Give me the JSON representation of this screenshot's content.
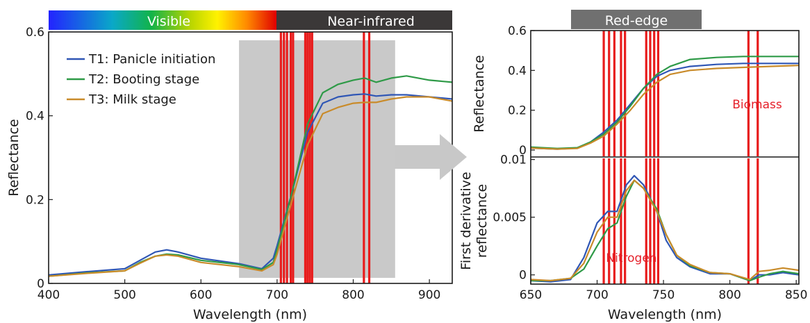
{
  "chart_data": [
    {
      "panel": "left",
      "type": "line",
      "band_labels": {
        "visible": "Visible",
        "nir": "Near-infrared"
      },
      "xlabel": "Wavelength (nm)",
      "ylabel": "Reflectance",
      "xlim": [
        400,
        930
      ],
      "ylim": [
        0,
        0.6
      ],
      "xticks": [
        400,
        500,
        600,
        700,
        800,
        900
      ],
      "yticks": [
        0,
        0.2,
        0.4,
        0.6
      ],
      "ytick_labels": [
        "0",
        "0.2",
        "0.4",
        "0.6"
      ],
      "highlight_region": [
        650,
        855
      ],
      "marker_bands": [
        705,
        709,
        713,
        718,
        721,
        737,
        740,
        743,
        746,
        814,
        821
      ],
      "legend_position": "top-left",
      "series": [
        {
          "name": "T1: Panicle initiation",
          "color": "#2f56b5",
          "x": [
            400,
            450,
            500,
            520,
            540,
            555,
            570,
            600,
            650,
            680,
            695,
            700,
            720,
            740,
            760,
            780,
            800,
            815,
            830,
            850,
            870,
            900,
            930
          ],
          "y": [
            0.02,
            0.028,
            0.035,
            0.055,
            0.075,
            0.08,
            0.075,
            0.06,
            0.047,
            0.035,
            0.06,
            0.09,
            0.22,
            0.36,
            0.43,
            0.445,
            0.45,
            0.452,
            0.447,
            0.45,
            0.45,
            0.445,
            0.44
          ]
        },
        {
          "name": "T2: Booting stage",
          "color": "#2e9a47",
          "x": [
            400,
            450,
            500,
            520,
            540,
            555,
            570,
            600,
            650,
            680,
            695,
            700,
            720,
            740,
            760,
            780,
            800,
            815,
            830,
            850,
            870,
            900,
            930
          ],
          "y": [
            0.017,
            0.025,
            0.03,
            0.05,
            0.065,
            0.07,
            0.068,
            0.055,
            0.045,
            0.033,
            0.05,
            0.08,
            0.22,
            0.38,
            0.455,
            0.475,
            0.485,
            0.49,
            0.48,
            0.49,
            0.495,
            0.485,
            0.48
          ]
        },
        {
          "name": "T3: Milk stage",
          "color": "#c98b2a",
          "x": [
            400,
            450,
            500,
            520,
            540,
            555,
            570,
            600,
            650,
            680,
            695,
            700,
            720,
            740,
            760,
            780,
            800,
            815,
            830,
            850,
            870,
            900,
            930
          ],
          "y": [
            0.017,
            0.024,
            0.03,
            0.048,
            0.065,
            0.068,
            0.065,
            0.05,
            0.04,
            0.03,
            0.045,
            0.07,
            0.2,
            0.33,
            0.405,
            0.42,
            0.43,
            0.432,
            0.432,
            0.44,
            0.445,
            0.445,
            0.435
          ]
        }
      ]
    },
    {
      "panel": "right-top",
      "type": "line",
      "band_label": "Red-edge",
      "ylabel": "Reflectance",
      "xlim": [
        650,
        852
      ],
      "ylim": [
        0,
        0.6
      ],
      "yticks": [
        0,
        0.2,
        0.4,
        0.6
      ],
      "ytick_labels": [
        "0",
        "0.2",
        "0.4",
        "0.6"
      ],
      "annotation": "Biomass",
      "marker_bands": [
        705,
        709,
        713,
        718,
        721,
        737,
        740,
        743,
        746,
        814,
        821
      ],
      "series": [
        {
          "name": "T1: Panicle initiation",
          "color": "#2f56b5",
          "x": [
            650,
            670,
            685,
            695,
            705,
            715,
            725,
            735,
            745,
            755,
            770,
            790,
            810,
            830,
            852
          ],
          "y": [
            0.01,
            0.005,
            0.01,
            0.04,
            0.09,
            0.15,
            0.23,
            0.31,
            0.37,
            0.4,
            0.42,
            0.43,
            0.435,
            0.435,
            0.435
          ]
        },
        {
          "name": "T2: Booting stage",
          "color": "#2e9a47",
          "x": [
            650,
            670,
            685,
            695,
            705,
            715,
            725,
            735,
            745,
            755,
            770,
            790,
            810,
            830,
            852
          ],
          "y": [
            0.015,
            0.008,
            0.012,
            0.04,
            0.08,
            0.14,
            0.22,
            0.31,
            0.38,
            0.42,
            0.455,
            0.465,
            0.47,
            0.47,
            0.47
          ]
        },
        {
          "name": "T3: Milk stage",
          "color": "#c98b2a",
          "x": [
            650,
            670,
            685,
            695,
            705,
            715,
            725,
            735,
            745,
            755,
            770,
            790,
            810,
            830,
            852
          ],
          "y": [
            0.01,
            0.005,
            0.008,
            0.035,
            0.07,
            0.13,
            0.2,
            0.28,
            0.34,
            0.38,
            0.4,
            0.41,
            0.415,
            0.42,
            0.425
          ]
        }
      ]
    },
    {
      "panel": "right-bottom",
      "type": "line",
      "xlabel": "Wavelength (nm)",
      "ylabel": "First derivative reflectance",
      "ylabel_lines": [
        "First derivative",
        "reflectance"
      ],
      "xlim": [
        650,
        852
      ],
      "ylim": [
        -0.0008,
        0.0101
      ],
      "xticks": [
        650,
        700,
        750,
        800,
        850
      ],
      "yticks": [
        0,
        0.005,
        0.01
      ],
      "ytick_labels": [
        "0",
        "0.005",
        "0.01"
      ],
      "annotation": "Nitrogen",
      "marker_bands": [
        705,
        709,
        713,
        718,
        721,
        737,
        740,
        743,
        746,
        814,
        821
      ],
      "series": [
        {
          "name": "T1: Panicle initiation",
          "color": "#2f56b5",
          "x": [
            650,
            665,
            680,
            690,
            700,
            708,
            715,
            722,
            728,
            735,
            745,
            752,
            760,
            770,
            785,
            800,
            815,
            822,
            830,
            840,
            852
          ],
          "y": [
            -0.0005,
            -0.0006,
            -0.0004,
            0.0015,
            0.0045,
            0.0055,
            0.0055,
            0.0078,
            0.0086,
            0.0078,
            0.0055,
            0.003,
            0.0015,
            0.0007,
            0.0001,
            0.0001,
            -0.0005,
            0,
            0,
            0.0002,
            0
          ]
        },
        {
          "name": "T2: Booting stage",
          "color": "#2e9a47",
          "x": [
            650,
            665,
            680,
            690,
            700,
            708,
            715,
            722,
            728,
            735,
            745,
            752,
            760,
            770,
            785,
            800,
            815,
            822,
            830,
            840,
            852
          ],
          "y": [
            -0.0005,
            -0.0005,
            -0.0003,
            0.0005,
            0.0025,
            0.004,
            0.0045,
            0.0068,
            0.0082,
            0.0075,
            0.0057,
            0.0035,
            0.0017,
            0.0008,
            0.0002,
            0.0001,
            -0.0005,
            -0.0002,
            0.0001,
            0.0003,
            0.0001
          ]
        },
        {
          "name": "T3: Milk stage",
          "color": "#c98b2a",
          "x": [
            650,
            665,
            680,
            690,
            700,
            708,
            715,
            722,
            728,
            735,
            745,
            752,
            760,
            770,
            785,
            800,
            815,
            822,
            830,
            840,
            852
          ],
          "y": [
            -0.0004,
            -0.0005,
            -0.0003,
            0.001,
            0.0037,
            0.005,
            0.005,
            0.0073,
            0.0082,
            0.0075,
            0.0055,
            0.0035,
            0.0017,
            0.0009,
            0.0002,
            0.0001,
            -0.0004,
            0.0003,
            0.0004,
            0.0006,
            0.0004
          ]
        }
      ]
    }
  ]
}
